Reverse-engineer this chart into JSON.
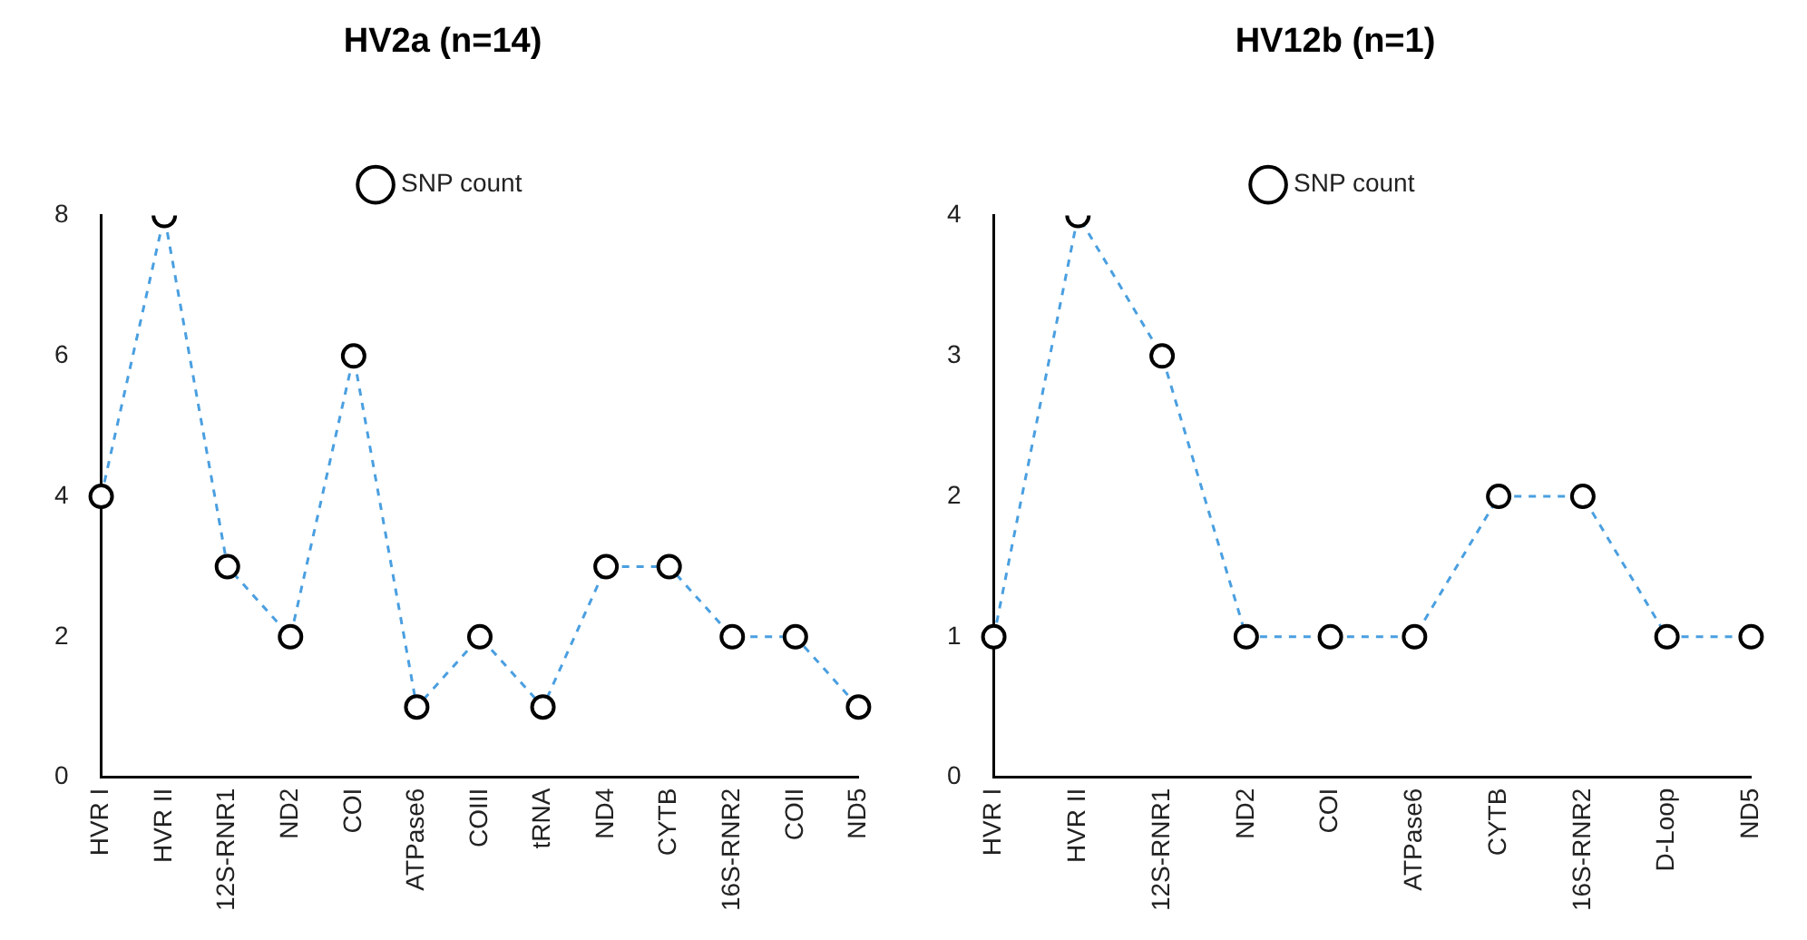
{
  "chart_data": [
    {
      "type": "line",
      "title": "HV2a (n=14)",
      "categories": [
        "HVR I",
        "HVR II",
        "12S-RNR1",
        "ND2",
        "COI",
        "ATPase6",
        "COIII",
        "tRNA",
        "ND4",
        "CYTB",
        "16S-RNR2",
        "COII",
        "ND5"
      ],
      "series": [
        {
          "name": "SNP count",
          "color": "#4a9fe0",
          "values": [
            4,
            8,
            3,
            2,
            6,
            1,
            2,
            1,
            3,
            3,
            2,
            2,
            1
          ]
        }
      ],
      "ylim": [
        0,
        8
      ],
      "yticks": [
        0,
        2,
        4,
        6,
        8
      ],
      "legend": "top",
      "marker": "circle",
      "line_style": "dashed",
      "grid": false
    },
    {
      "type": "line",
      "title": "HV12b (n=1)",
      "categories": [
        "HVR I",
        "HVR II",
        "12S-RNR1",
        "ND2",
        "COI",
        "ATPase6",
        "CYTB",
        "16S-RNR2",
        "D-Loop",
        "ND5"
      ],
      "series": [
        {
          "name": "SNP count",
          "color": "#4a9fe0",
          "values": [
            1,
            4,
            3,
            1,
            1,
            1,
            2,
            2,
            1,
            1
          ]
        }
      ],
      "ylim": [
        0,
        4
      ],
      "yticks": [
        0,
        1,
        2,
        3,
        4
      ],
      "legend": "top",
      "marker": "circle",
      "line_style": "dashed",
      "grid": false
    }
  ]
}
